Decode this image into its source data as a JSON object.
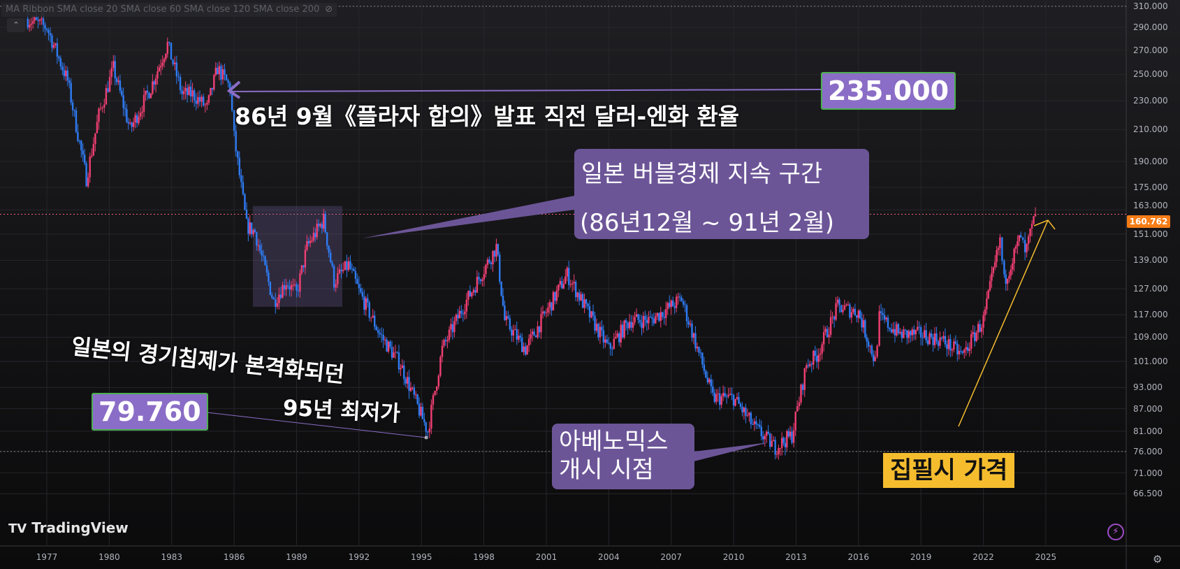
{
  "legend": {
    "text": "MA Ribbon SMA close 20 SMA close 60 SMA close 120 SMA close 200",
    "icon": "eye-off-icon"
  },
  "brand": "TradingView",
  "colors": {
    "up": "#f23f73",
    "down": "#2f7cf5",
    "annotation": "#6c5597",
    "highlight": "#f5bd2e",
    "last_price": "#f57c16"
  },
  "annotations": {
    "plaza": {
      "value": "235.000",
      "text": "86년 9월《플라자 합의》발표 직전 달러-엔화 환율"
    },
    "bubble": {
      "line1": "일본 버블경제 지속 구간",
      "line2": "(86년12월 ~ 91년 2월)"
    },
    "recession": {
      "line1": "일본의 경기침제가 본격화되던",
      "line2": "95년 최저가",
      "value": "79.760"
    },
    "abenomics": {
      "line1": "아베노믹스",
      "line2": "개시 시점"
    },
    "current": {
      "text": "집필시 가격"
    }
  },
  "chart_data": {
    "type": "candlestick",
    "scale": "log",
    "ylim": [
      62,
      320
    ],
    "xlim": [
      1975.9,
      2026.5
    ],
    "grid": true,
    "y_ticks": [
      "310.000",
      "290.000",
      "270.000",
      "250.000",
      "230.000",
      "210.000",
      "190.000",
      "175.000",
      "163.000",
      "151.000",
      "139.000",
      "127.000",
      "117.000",
      "109.000",
      "101.000",
      "93.000",
      "87.000",
      "81.000",
      "76.000",
      "71.000",
      "66.500"
    ],
    "x_ticks": [
      "1977",
      "1980",
      "1983",
      "1986",
      "1989",
      "1992",
      "1995",
      "1998",
      "2001",
      "2004",
      "2007",
      "2010",
      "2013",
      "2016",
      "2019",
      "2022",
      "2025"
    ],
    "last_price": "160.762",
    "horizontal_lines": [
      160.762,
      76.0,
      310.0
    ],
    "key_closes": [
      [
        1976.0,
        298
      ],
      [
        1977.0,
        290
      ],
      [
        1978.0,
        245
      ],
      [
        1978.9,
        180
      ],
      [
        1979.5,
        220
      ],
      [
        1980.2,
        255
      ],
      [
        1981.0,
        210
      ],
      [
        1982.0,
        240
      ],
      [
        1982.8,
        275
      ],
      [
        1983.5,
        235
      ],
      [
        1984.0,
        235
      ],
      [
        1984.7,
        225
      ],
      [
        1985.2,
        255
      ],
      [
        1985.8,
        240
      ],
      [
        1986.0,
        205
      ],
      [
        1986.6,
        155
      ],
      [
        1987.0,
        152
      ],
      [
        1987.9,
        122
      ],
      [
        1988.5,
        130
      ],
      [
        1989.0,
        125
      ],
      [
        1989.5,
        145
      ],
      [
        1990.3,
        158
      ],
      [
        1990.8,
        130
      ],
      [
        1991.5,
        137
      ],
      [
        1992.0,
        126
      ],
      [
        1993.0,
        110
      ],
      [
        1994.0,
        100
      ],
      [
        1995.3,
        81
      ],
      [
        1996.0,
        105
      ],
      [
        1997.0,
        120
      ],
      [
        1998.6,
        145
      ],
      [
        1999.0,
        115
      ],
      [
        2000.0,
        105
      ],
      [
        2001.0,
        118
      ],
      [
        2002.0,
        133
      ],
      [
        2003.0,
        118
      ],
      [
        2004.0,
        105
      ],
      [
        2005.0,
        115
      ],
      [
        2006.0,
        115
      ],
      [
        2007.5,
        123
      ],
      [
        2008.5,
        100
      ],
      [
        2009.0,
        90
      ],
      [
        2010.0,
        90
      ],
      [
        2011.0,
        82
      ],
      [
        2012.0,
        77
      ],
      [
        2012.8,
        80
      ],
      [
        2013.5,
        100
      ],
      [
        2014.0,
        103
      ],
      [
        2015.0,
        120
      ],
      [
        2016.0,
        118
      ],
      [
        2016.8,
        101
      ],
      [
        2017.0,
        116
      ],
      [
        2018.0,
        110
      ],
      [
        2019.0,
        110
      ],
      [
        2020.0,
        108
      ],
      [
        2021.0,
        103
      ],
      [
        2022.0,
        115
      ],
      [
        2022.8,
        148
      ],
      [
        2023.0,
        130
      ],
      [
        2023.8,
        150
      ],
      [
        2024.0,
        141
      ],
      [
        2024.5,
        160.762
      ]
    ],
    "shaded_region": {
      "x": [
        1986.9,
        1991.2
      ],
      "y": [
        120,
        165
      ]
    }
  }
}
